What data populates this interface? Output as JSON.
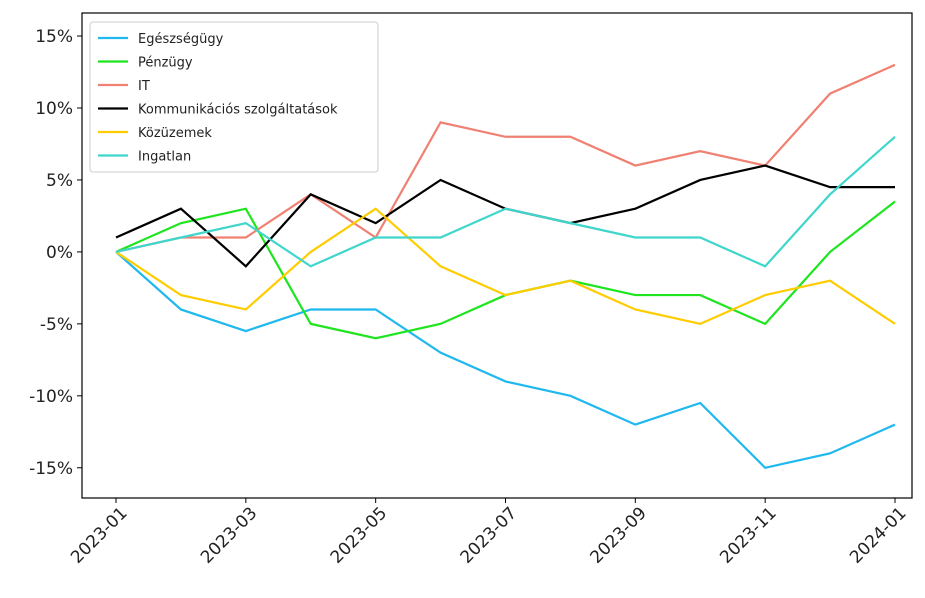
{
  "chart_data": {
    "type": "line",
    "x": [
      "2023-01",
      "2023-02",
      "2023-03",
      "2023-04",
      "2023-05",
      "2023-06",
      "2023-07",
      "2023-08",
      "2023-09",
      "2023-10",
      "2023-11",
      "2023-12",
      "2024-01"
    ],
    "series": [
      {
        "name": "Egészségügy",
        "color": "#1fb8ef",
        "values": [
          0,
          -4,
          -5.5,
          -4,
          -4,
          -7,
          -9,
          -10,
          -12,
          -10.5,
          -15,
          -14,
          -12
        ]
      },
      {
        "name": "Pénzügy",
        "color": "#1ee51e",
        "values": [
          0,
          2,
          3,
          -5,
          -6,
          -5,
          -3,
          -2,
          -3,
          -3,
          -5,
          0,
          3.5
        ]
      },
      {
        "name": "IT",
        "color": "#f08072",
        "values": [
          0,
          1,
          1,
          4,
          1,
          9,
          8,
          8,
          6,
          7,
          6,
          11,
          13
        ]
      },
      {
        "name": "Kommunikációs szolgáltatások",
        "color": "#000000",
        "values": [
          1,
          3,
          -1,
          4,
          2,
          5,
          3,
          2,
          3,
          5,
          6,
          4.5,
          4.5
        ]
      },
      {
        "name": "Közüzemek",
        "color": "#ffcc00",
        "values": [
          0,
          -3,
          -4,
          0,
          3,
          -1,
          -3,
          -2,
          -4,
          -5,
          -3,
          -2,
          -5
        ]
      },
      {
        "name": "Ingatlan",
        "color": "#3fd6cc",
        "values": [
          0,
          1,
          2,
          -1,
          1,
          1,
          3,
          2,
          1,
          1,
          -1,
          4,
          8
        ]
      }
    ],
    "ylim": [
      -17.1,
      16.6
    ],
    "yticks": [
      {
        "value": 15,
        "label": "15%"
      },
      {
        "value": 10,
        "label": "10%"
      },
      {
        "value": 5,
        "label": "5%"
      },
      {
        "value": 0,
        "label": "0%"
      },
      {
        "value": -5,
        "label": "-5%"
      },
      {
        "value": -10,
        "label": "-10%"
      },
      {
        "value": -15,
        "label": "-15%"
      }
    ],
    "xticks": [
      "2023-01",
      "2023-03",
      "2023-05",
      "2023-07",
      "2023-09",
      "2023-11",
      "2024-01"
    ],
    "legend": "upper-left"
  }
}
